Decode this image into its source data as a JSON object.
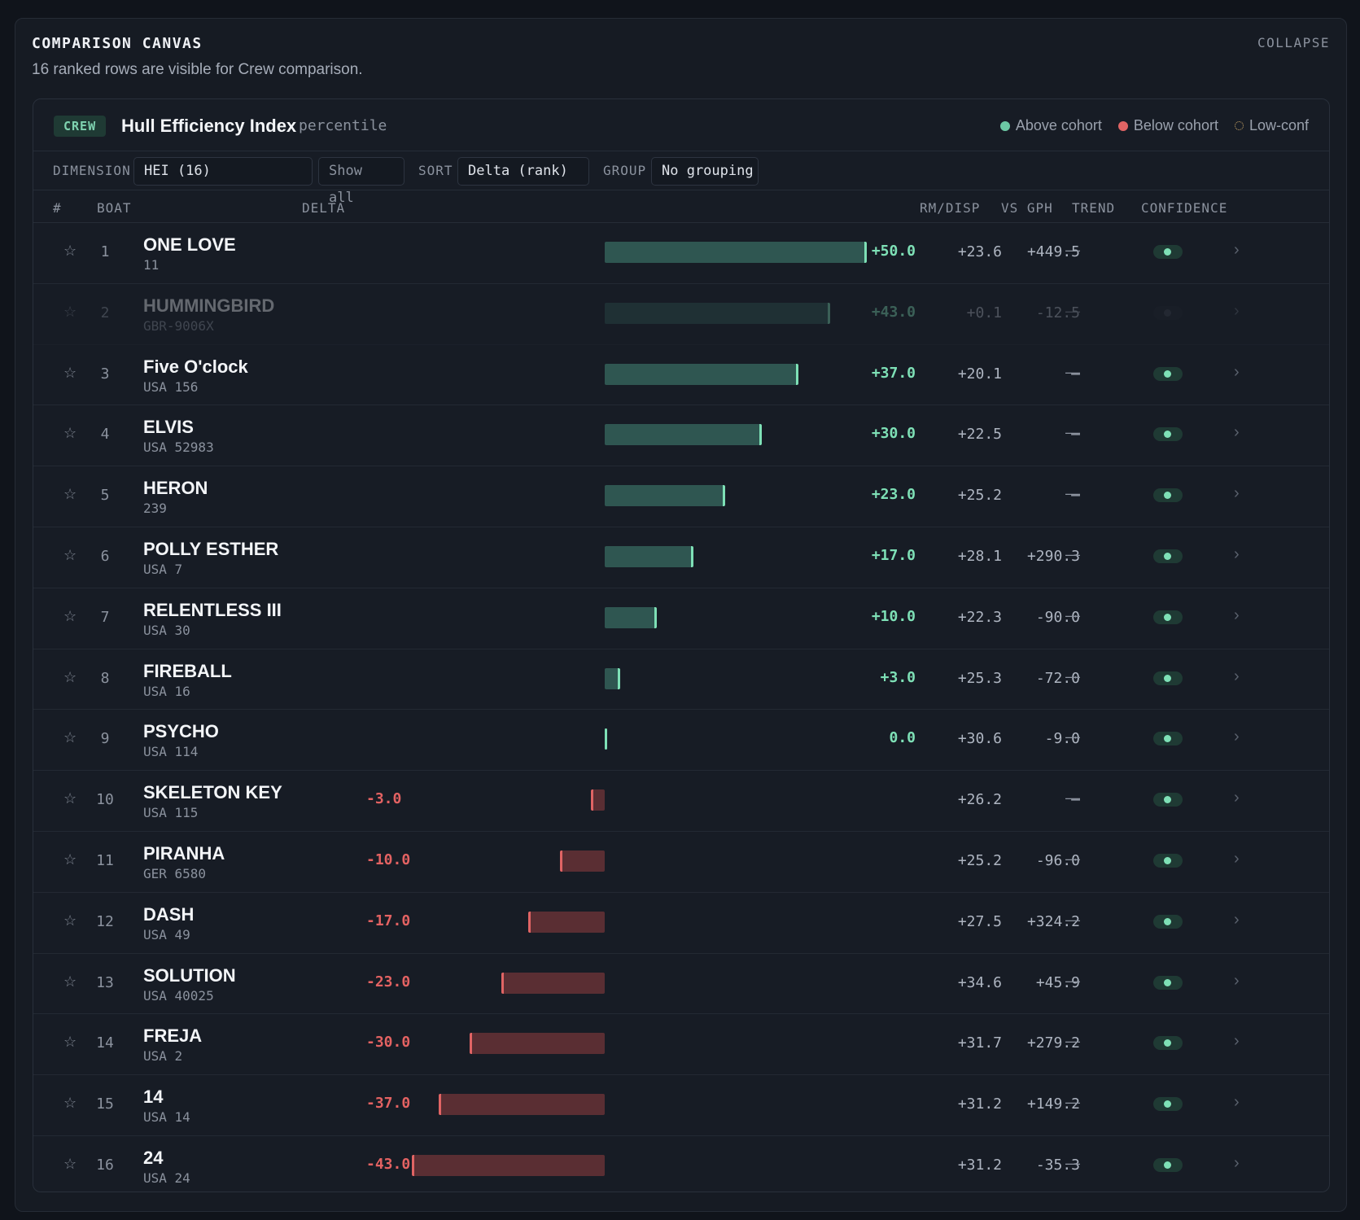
{
  "canvas": {
    "title": "COMPARISON CANVAS",
    "subtitle": "16 ranked rows are visible for Crew comparison.",
    "collapse_label": "COLLAPSE"
  },
  "panel": {
    "badge": "CREW",
    "metric_name": "Hull Efficiency Index",
    "metric_unit": "percentile",
    "legend": {
      "above": "Above cohort",
      "below": "Below cohort",
      "lowconf": "Low-conf"
    }
  },
  "controls": {
    "dimension_label": "DIMENSION",
    "dimension_value": "HEI (16)",
    "show_all": "Show all",
    "sort_label": "SORT",
    "sort_value": "Delta (rank)",
    "group_label": "GROUP",
    "group_value": "No grouping"
  },
  "columns": {
    "rank": "#",
    "boat": "BOAT",
    "delta": "DELTA",
    "rm_disp": "RM/DISP",
    "vs_gph": "VS GPH",
    "trend": "TREND",
    "confidence": "CONFIDENCE"
  },
  "delta_scale_max": 50,
  "icons": {
    "star": "☆",
    "chevron": "›",
    "trend_dash": "—"
  },
  "colors": {
    "positive": "#7ee0b6",
    "negative": "#e06464",
    "accent_bg": "#1f3a34"
  },
  "rows": [
    {
      "rank": "1",
      "name": "ONE LOVE",
      "sail": "11",
      "delta": 50.0,
      "delta_text": "+50.0",
      "rm_disp": "+23.6",
      "vs_gph": "+449.5",
      "dim": false
    },
    {
      "rank": "2",
      "name": "HUMMINGBIRD",
      "sail": "GBR-9006X",
      "delta": 43.0,
      "delta_text": "+43.0",
      "rm_disp": "+0.1",
      "vs_gph": "-12.5",
      "dim": true
    },
    {
      "rank": "3",
      "name": "Five O'clock",
      "sail": "USA 156",
      "delta": 37.0,
      "delta_text": "+37.0",
      "rm_disp": "+20.1",
      "vs_gph": "–",
      "dim": false
    },
    {
      "rank": "4",
      "name": "ELVIS",
      "sail": "USA 52983",
      "delta": 30.0,
      "delta_text": "+30.0",
      "rm_disp": "+22.5",
      "vs_gph": "–",
      "dim": false
    },
    {
      "rank": "5",
      "name": "HERON",
      "sail": "239",
      "delta": 23.0,
      "delta_text": "+23.0",
      "rm_disp": "+25.2",
      "vs_gph": "–",
      "dim": false
    },
    {
      "rank": "6",
      "name": "POLLY ESTHER",
      "sail": "USA 7",
      "delta": 17.0,
      "delta_text": "+17.0",
      "rm_disp": "+28.1",
      "vs_gph": "+290.3",
      "dim": false
    },
    {
      "rank": "7",
      "name": "RELENTLESS III",
      "sail": "USA 30",
      "delta": 10.0,
      "delta_text": "+10.0",
      "rm_disp": "+22.3",
      "vs_gph": "-90.0",
      "dim": false
    },
    {
      "rank": "8",
      "name": "FIREBALL",
      "sail": "USA 16",
      "delta": 3.0,
      "delta_text": "+3.0",
      "rm_disp": "+25.3",
      "vs_gph": "-72.0",
      "dim": false
    },
    {
      "rank": "9",
      "name": "PSYCHO",
      "sail": "USA 114",
      "delta": 0.0,
      "delta_text": "0.0",
      "rm_disp": "+30.6",
      "vs_gph": "-9.0",
      "dim": false
    },
    {
      "rank": "10",
      "name": "SKELETON KEY",
      "sail": "USA 115",
      "delta": -3.0,
      "delta_text": "-3.0",
      "rm_disp": "+26.2",
      "vs_gph": "–",
      "dim": false
    },
    {
      "rank": "11",
      "name": "PIRANHA",
      "sail": "GER 6580",
      "delta": -10.0,
      "delta_text": "-10.0",
      "rm_disp": "+25.2",
      "vs_gph": "-96.0",
      "dim": false
    },
    {
      "rank": "12",
      "name": "DASH",
      "sail": "USA 49",
      "delta": -17.0,
      "delta_text": "-17.0",
      "rm_disp": "+27.5",
      "vs_gph": "+324.2",
      "dim": false
    },
    {
      "rank": "13",
      "name": "SOLUTION",
      "sail": "USA 40025",
      "delta": -23.0,
      "delta_text": "-23.0",
      "rm_disp": "+34.6",
      "vs_gph": "+45.9",
      "dim": false
    },
    {
      "rank": "14",
      "name": "FREJA",
      "sail": "USA 2",
      "delta": -30.0,
      "delta_text": "-30.0",
      "rm_disp": "+31.7",
      "vs_gph": "+279.2",
      "dim": false
    },
    {
      "rank": "15",
      "name": "14",
      "sail": "USA 14",
      "delta": -37.0,
      "delta_text": "-37.0",
      "rm_disp": "+31.2",
      "vs_gph": "+149.2",
      "dim": false
    },
    {
      "rank": "16",
      "name": "24",
      "sail": "USA 24",
      "delta": -43.0,
      "delta_text": "-43.0",
      "rm_disp": "+31.2",
      "vs_gph": "-35.3",
      "dim": false
    }
  ]
}
